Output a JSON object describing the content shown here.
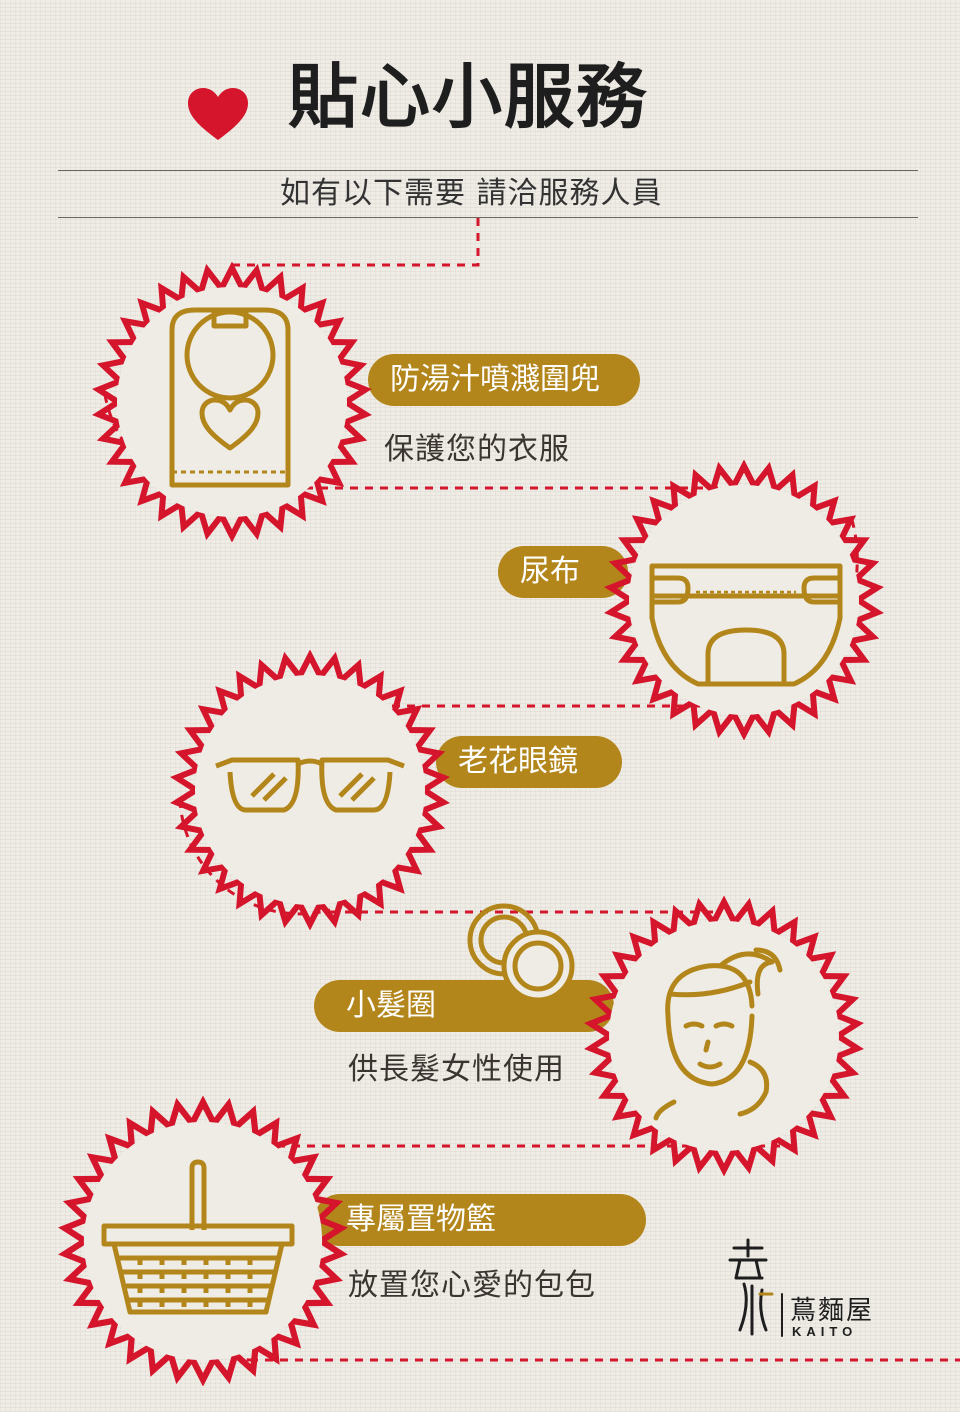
{
  "header": {
    "title": "貼心小服務",
    "subtitle": "如有以下需要 請洽服務人員"
  },
  "items": [
    {
      "label": "防湯汁噴濺圍兜",
      "description": "保護您的衣服",
      "icon": "bib-icon"
    },
    {
      "label": "尿布",
      "description": "",
      "icon": "diaper-icon"
    },
    {
      "label": "老花眼鏡",
      "description": "",
      "icon": "glasses-icon"
    },
    {
      "label": "小髮圈",
      "description": "供長髮女性使用",
      "icon": "woman-face-icon"
    },
    {
      "label": "專屬置物籃",
      "description": "放置您心愛的包包",
      "icon": "basket-icon"
    }
  ],
  "brand": {
    "name": "蔦麵屋",
    "english": "KAITO"
  },
  "colors": {
    "accent_gold": "#b3861b",
    "badge_red": "#d4152b",
    "text_dark": "#1e1e1e",
    "background": "#efece6"
  }
}
